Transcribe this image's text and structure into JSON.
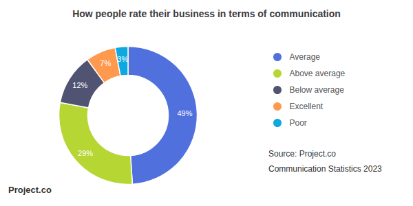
{
  "chart_data": {
    "type": "pie",
    "title": "How people rate their business in terms of communication",
    "categories": [
      "Average",
      "Above average",
      "Below average",
      "Excellent",
      "Poor"
    ],
    "values": [
      49,
      29,
      12,
      7,
      3
    ],
    "value_labels": [
      "49%",
      "29%",
      "12%",
      "7%",
      "3%"
    ],
    "data_labels": true,
    "legend": "right",
    "annotations": [
      "Source: Project.co",
      "Communication Statistics 2023",
      "Project.co"
    ]
  }
}
